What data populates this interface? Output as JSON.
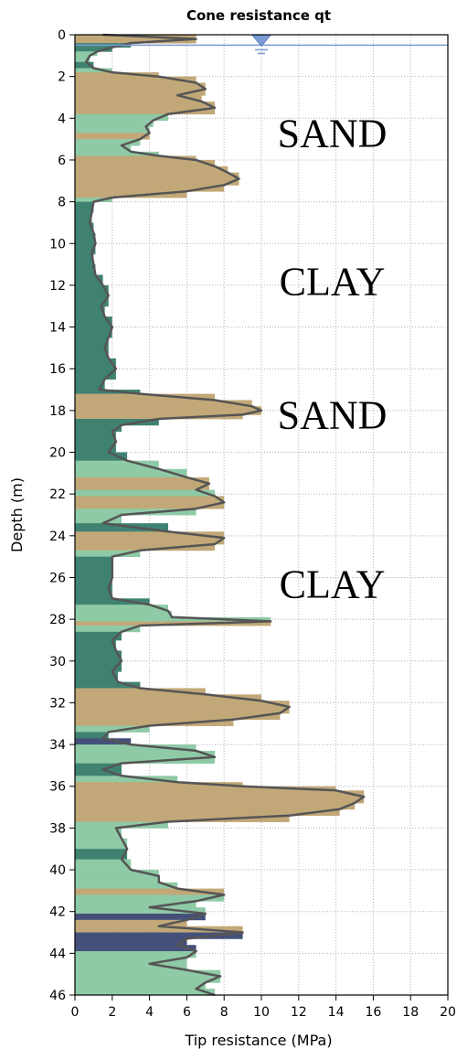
{
  "chart_data": {
    "type": "area",
    "title": "Cone resistance qt",
    "xlabel": "Tip resistance (MPa)",
    "ylabel": "Depth (m)",
    "xlim": [
      0,
      20
    ],
    "ylim": [
      46,
      0
    ],
    "y_inverted": true,
    "x_ticks": [
      "0",
      "2",
      "4",
      "6",
      "8",
      "10",
      "12",
      "14",
      "16",
      "18",
      "20"
    ],
    "y_ticks": [
      "0",
      "2",
      "4",
      "6",
      "8",
      "10",
      "12",
      "14",
      "16",
      "18",
      "20",
      "22",
      "24",
      "26",
      "28",
      "30",
      "32",
      "34",
      "36",
      "38",
      "40",
      "42",
      "44",
      "46"
    ],
    "grid": true,
    "water_table_depth_m": 0.5,
    "water_table_marker_x_mpa": 10,
    "colors": {
      "sand": "#c2a878",
      "clay": "#3f8272",
      "silt": "#8fcaa6",
      "organic": "#45507a",
      "outline": "#555555",
      "water_table": "#7b9bd6",
      "grid": "#b0b0b0"
    },
    "annotations": [
      {
        "text": "SAND",
        "depth": 4.7,
        "x": 13.8
      },
      {
        "text": "CLAY",
        "depth": 11.8,
        "x": 13.8
      },
      {
        "text": "SAND",
        "depth": 18.2,
        "x": 13.8
      },
      {
        "text": "CLAY",
        "depth": 26.3,
        "x": 13.8
      }
    ],
    "series": [
      {
        "name": "qt",
        "depth": [
          0,
          0.2,
          0.4,
          0.6,
          0.8,
          1.0,
          1.3,
          1.6,
          1.8,
          2.0,
          2.3,
          2.6,
          2.9,
          3.2,
          3.5,
          3.8,
          4.1,
          4.4,
          4.7,
          5.0,
          5.3,
          5.6,
          5.8,
          6.0,
          6.3,
          6.6,
          6.9,
          7.2,
          7.5,
          7.8,
          8.0,
          8.5,
          9.0,
          9.5,
          10.0,
          10.5,
          11.0,
          11.5,
          12.0,
          12.5,
          13.0,
          13.5,
          14.0,
          14.5,
          15.0,
          15.5,
          16.0,
          16.5,
          17.0,
          17.2,
          17.5,
          17.8,
          18.0,
          18.2,
          18.4,
          18.7,
          19.0,
          19.5,
          20.0,
          20.4,
          20.8,
          21.2,
          21.5,
          21.8,
          22.1,
          22.4,
          22.7,
          23.0,
          23.4,
          23.8,
          24.1,
          24.4,
          24.7,
          25.0,
          25.5,
          26.0,
          26.5,
          27.0,
          27.3,
          27.6,
          27.9,
          28.1,
          28.3,
          28.6,
          29.0,
          29.5,
          30.0,
          30.5,
          31.0,
          31.3,
          31.6,
          31.9,
          32.2,
          32.5,
          32.8,
          33.1,
          33.4,
          33.7,
          34.0,
          34.3,
          34.6,
          34.9,
          35.2,
          35.5,
          35.8,
          36.0,
          36.2,
          36.5,
          36.8,
          37.1,
          37.4,
          37.7,
          38.0,
          38.5,
          39.0,
          39.5,
          40.0,
          40.3,
          40.6,
          40.9,
          41.2,
          41.5,
          41.8,
          42.1,
          42.4,
          42.7,
          43.0,
          43.3,
          43.6,
          43.9,
          44.2,
          44.5,
          44.8,
          45.1,
          45.4,
          45.7,
          46.0
        ],
        "qt": [
          1.5,
          6.5,
          3.0,
          2.0,
          1.2,
          0.8,
          0.6,
          1.0,
          2.0,
          4.5,
          6.5,
          7.0,
          5.5,
          6.8,
          7.5,
          5.0,
          4.2,
          3.8,
          4.0,
          3.5,
          2.5,
          3.0,
          4.5,
          6.5,
          7.5,
          8.2,
          8.8,
          8.0,
          6.0,
          2.0,
          1.0,
          0.9,
          0.8,
          1.0,
          1.1,
          0.9,
          1.0,
          1.1,
          1.5,
          1.8,
          1.4,
          1.6,
          2.0,
          1.8,
          1.6,
          1.8,
          2.2,
          1.6,
          1.3,
          3.5,
          7.5,
          9.5,
          10.0,
          9.0,
          4.5,
          2.5,
          2.0,
          2.2,
          1.8,
          2.8,
          4.5,
          6.0,
          7.2,
          6.5,
          7.5,
          8.0,
          6.5,
          2.5,
          1.5,
          5.0,
          8.0,
          7.5,
          3.5,
          2.0,
          2.0,
          2.0,
          1.8,
          2.0,
          4.0,
          5.0,
          5.2,
          10.5,
          3.5,
          2.5,
          2.0,
          2.2,
          2.5,
          2.0,
          2.3,
          3.5,
          7.0,
          10.0,
          11.5,
          11.0,
          8.5,
          4.0,
          1.8,
          1.5,
          3.0,
          6.5,
          7.5,
          2.5,
          1.5,
          2.5,
          5.5,
          9.0,
          14.0,
          15.5,
          15.0,
          14.2,
          11.5,
          5.0,
          2.2,
          2.5,
          2.8,
          2.5,
          3.0,
          4.5,
          4.5,
          5.5,
          8.0,
          6.5,
          4.0,
          7.0,
          6.0,
          4.5,
          9.0,
          6.0,
          5.5,
          6.5,
          6.0,
          4.0,
          6.0,
          7.8,
          7.0,
          6.5,
          7.5
        ],
        "soil": [
          "sand",
          "sand",
          "clay",
          "clay",
          "silt",
          "silt",
          "clay",
          "silt",
          "sand",
          "sand",
          "sand",
          "sand",
          "sand",
          "sand",
          "sand",
          "silt",
          "silt",
          "silt",
          "sand",
          "silt",
          "silt",
          "silt",
          "sand",
          "sand",
          "sand",
          "sand",
          "sand",
          "sand",
          "sand",
          "silt",
          "clay",
          "clay",
          "clay",
          "clay",
          "clay",
          "clay",
          "clay",
          "clay",
          "clay",
          "clay",
          "clay",
          "clay",
          "clay",
          "clay",
          "clay",
          "clay",
          "clay",
          "clay",
          "clay",
          "sand",
          "sand",
          "sand",
          "sand",
          "sand",
          "clay",
          "clay",
          "clay",
          "clay",
          "clay",
          "silt",
          "silt",
          "sand",
          "sand",
          "silt",
          "sand",
          "sand",
          "silt",
          "silt",
          "clay",
          "sand",
          "sand",
          "sand",
          "silt",
          "clay",
          "clay",
          "clay",
          "clay",
          "clay",
          "silt",
          "silt",
          "silt",
          "sand",
          "silt",
          "clay",
          "clay",
          "clay",
          "clay",
          "clay",
          "clay",
          "sand",
          "sand",
          "sand",
          "sand",
          "sand",
          "sand",
          "silt",
          "clay",
          "organic",
          "silt",
          "silt",
          "silt",
          "clay",
          "clay",
          "silt",
          "sand",
          "sand",
          "sand",
          "sand",
          "sand",
          "sand",
          "sand",
          "silt",
          "silt",
          "silt",
          "clay",
          "silt",
          "silt",
          "silt",
          "silt",
          "sand",
          "silt",
          "silt",
          "silt",
          "organic",
          "sand",
          "sand",
          "organic",
          "organic",
          "organic",
          "silt",
          "silt",
          "silt",
          "silt",
          "silt",
          "silt",
          "silt",
          "silt"
        ]
      }
    ]
  }
}
